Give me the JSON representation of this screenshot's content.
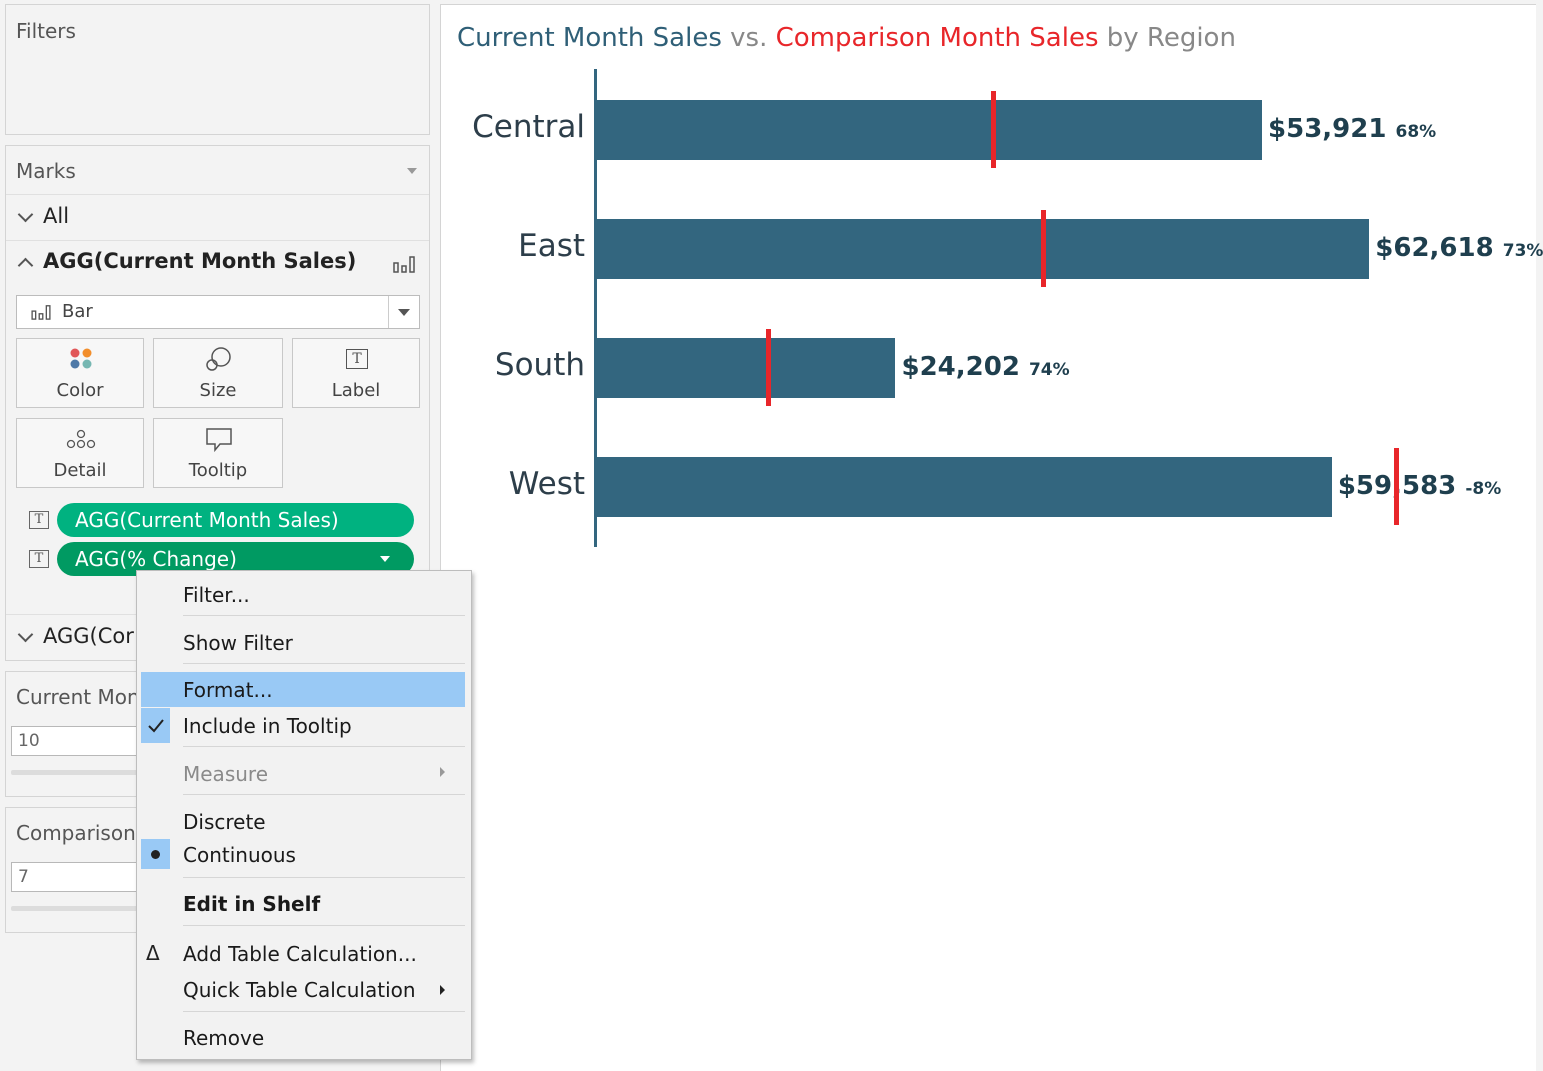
{
  "filters": {
    "title": "Filters"
  },
  "marks": {
    "title": "Marks",
    "all_label": "All",
    "current_section": "AGG(Current Month Sales)",
    "mark_type": "Bar",
    "buttons": {
      "color": "Color",
      "size": "Size",
      "label": "Label",
      "detail": "Detail",
      "tooltip": "Tooltip"
    },
    "pills": [
      {
        "label": "AGG(Current Month Sales)",
        "color": "#00b280"
      },
      {
        "label": "AGG(% Change)",
        "color": "#009a62"
      }
    ],
    "collapsed_section": "AGG(Cor"
  },
  "parameters": [
    {
      "title": "Current Mon",
      "value": "10"
    },
    {
      "title": "Comparison",
      "value": "7"
    }
  ],
  "chart": {
    "title_parts": [
      {
        "text": "Current Month Sales",
        "color": "#2f5f77"
      },
      {
        "text": " vs. ",
        "color": "#888888"
      },
      {
        "text": "Comparison Month Sales",
        "color": "#e8262a"
      },
      {
        "text": " by Region",
        "color": "#888888"
      }
    ]
  },
  "chart_data": {
    "type": "bar",
    "orientation": "horizontal",
    "categories": [
      "Central",
      "East",
      "South",
      "West"
    ],
    "series": [
      {
        "name": "Current Month Sales",
        "values": [
          53921,
          62618,
          24202,
          59583
        ],
        "color": "#33667f"
      },
      {
        "name": "Comparison Month Sales",
        "values": [
          32100,
          36200,
          13900,
          64800
        ],
        "color": "#e8262a",
        "mark": "reference-line"
      }
    ],
    "value_labels": [
      "$53,921",
      "$62,618",
      "$24,202",
      "$59,583"
    ],
    "pct_labels": [
      "68%",
      "73%",
      "74%",
      "-8%"
    ],
    "xlim": [
      0,
      65000
    ]
  },
  "context_menu": {
    "items": [
      {
        "label": "Filter..."
      },
      {
        "label": "Show Filter"
      },
      {
        "label": "Format..."
      },
      {
        "label": "Include in Tooltip"
      },
      {
        "label": "Measure"
      },
      {
        "label": "Discrete"
      },
      {
        "label": "Continuous"
      },
      {
        "label": "Edit in Shelf"
      },
      {
        "label": "Add Table Calculation..."
      },
      {
        "label": "Quick Table Calculation"
      },
      {
        "label": "Remove"
      }
    ],
    "highlight_color": "#99c9f5"
  }
}
